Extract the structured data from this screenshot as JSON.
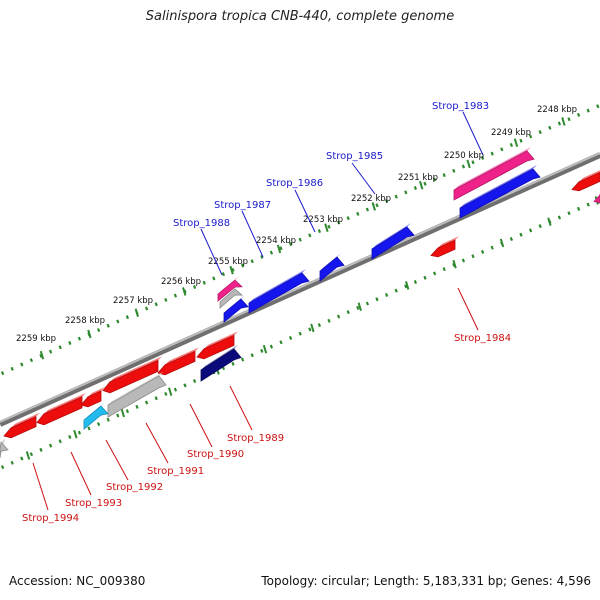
{
  "title": "Salinispora tropica CNB-440, complete genome",
  "accession_text": "Accession: NC_009380",
  "summary_text": "Topology: circular; Length: 5,183,331 bp; Genes: 4,596",
  "colors": {
    "backbone": "#8a8a8a",
    "forward_label": "#1a1acc",
    "reverse_label": "#cc1111",
    "tick": "#2f8a2f",
    "red": "#ee0d0d",
    "blue": "#1515ee",
    "pink": "#ee2288",
    "gray": "#b8b8b8",
    "cyan": "#22bbee",
    "navy": "#0a0a7a"
  },
  "scale_labels": [
    "2248 kbp",
    "2249 kbp",
    "2250 kbp",
    "2251 kbp",
    "2252 kbp",
    "2253 kbp",
    "2254 kbp",
    "2255 kbp",
    "2256 kbp",
    "2257 kbp",
    "2258 kbp",
    "2259 kbp"
  ],
  "forward_gene_labels": [
    "Strop_1983",
    "Strop_1985",
    "Strop_1986",
    "Strop_1987",
    "Strop_1988"
  ],
  "reverse_gene_labels": [
    "Strop_1984",
    "Strop_1989",
    "Strop_1990",
    "Strop_1991",
    "Strop_1992",
    "Strop_1993",
    "Strop_1994"
  ]
}
